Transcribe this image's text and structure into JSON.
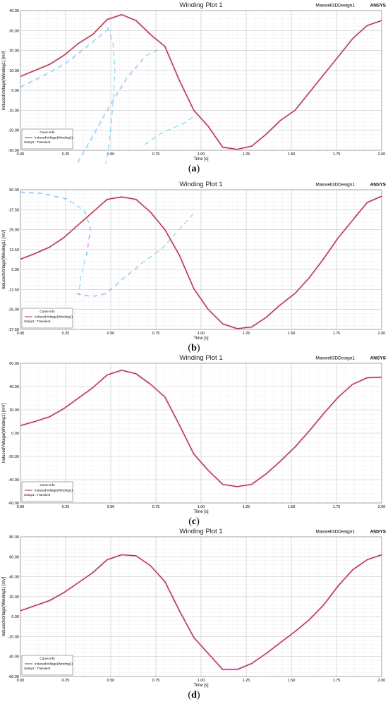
{
  "colors": {
    "curve": "#a52a2a",
    "grid_major": "#c8c8c8",
    "grid_minor": "#ececec",
    "artifact_blue": "#55c8ee",
    "artifact_magenta": "#f080f0"
  },
  "chart_data": [
    {
      "type": "line",
      "panel_label": "a",
      "title": "Winding Plot 1",
      "design_name": "Maxwell3DDesign1",
      "brand": "ANSYS",
      "xlabel": "Time [s]",
      "ylabel": "InducedVoltage(Winding1) [mV]",
      "xlim": [
        0,
        2
      ],
      "ylim": [
        -30,
        40
      ],
      "x_ticks": [
        0,
        0.25,
        0.5,
        0.75,
        1,
        1.25,
        1.5,
        1.75,
        2
      ],
      "x_tick_labels": [
        "0.00",
        "0.25",
        "0.50",
        "0.75",
        "1.00",
        "1.25",
        "1.50",
        "1.75",
        "2.00"
      ],
      "y_ticks": [
        -30,
        -20,
        -10,
        0,
        10,
        20,
        30,
        40
      ],
      "y_tick_labels": [
        "-30.00",
        "-20.00",
        "-10.00",
        "0.00",
        "10.00",
        "20.00",
        "30.00",
        "40.00"
      ],
      "legend": {
        "title": "Curve Info",
        "entry": "InducedVoltage(Winding1)",
        "setup": "Setup1 : Transient",
        "placement": "bottom-left"
      },
      "grid": true,
      "series": [
        {
          "name": "InducedVoltage(Winding1)",
          "x": [
            0,
            0.08,
            0.16,
            0.24,
            0.32,
            0.4,
            0.48,
            0.56,
            0.64,
            0.72,
            0.8,
            0.88,
            0.96,
            1.04,
            1.12,
            1.2,
            1.28,
            1.36,
            1.44,
            1.52,
            1.6,
            1.68,
            1.76,
            1.84,
            1.92,
            2.0
          ],
          "y": [
            7,
            10,
            13,
            17.5,
            23.5,
            28,
            35.5,
            38,
            35,
            28,
            22,
            5,
            -10,
            -18,
            -28.5,
            -29.5,
            -28,
            -22,
            -15,
            -10,
            -1,
            8,
            17,
            26,
            32.5,
            35
          ]
        }
      ]
    },
    {
      "type": "line",
      "panel_label": "b",
      "title": "Winding Plot 1",
      "design_name": "Maxwell3DDesign1",
      "brand": "ANSYS",
      "xlabel": "Time [s]",
      "ylabel": "InducedVoltage(Winding1) [mV]",
      "xlim": [
        0,
        2
      ],
      "ylim": [
        -37.5,
        50
      ],
      "x_ticks": [
        0,
        0.25,
        0.5,
        0.75,
        1,
        1.25,
        1.5,
        1.75,
        2
      ],
      "x_tick_labels": [
        "0.00",
        "0.25",
        "0.50",
        "0.75",
        "1.00",
        "1.25",
        "1.50",
        "1.75",
        "2.00"
      ],
      "y_ticks": [
        -37.5,
        -25,
        -12.5,
        0,
        12.5,
        25,
        37.5,
        50
      ],
      "y_tick_labels": [
        "-37.50",
        "-25.00",
        "-12.50",
        "0.00",
        "12.50",
        "25.00",
        "37.50",
        "50.00"
      ],
      "legend": {
        "title": "Curve Info",
        "entry": "InducedVoltage(Winding1)",
        "setup": "Setup1 : Transient",
        "placement": "bottom-left"
      },
      "grid": true,
      "series": [
        {
          "name": "InducedVoltage(Winding1)",
          "x": [
            0,
            0.08,
            0.16,
            0.24,
            0.32,
            0.4,
            0.48,
            0.56,
            0.64,
            0.72,
            0.8,
            0.88,
            0.96,
            1.04,
            1.12,
            1.2,
            1.28,
            1.36,
            1.44,
            1.52,
            1.6,
            1.68,
            1.76,
            1.84,
            1.92,
            2.0
          ],
          "y": [
            6.5,
            10,
            14,
            20,
            28,
            36,
            44,
            45.5,
            44,
            36,
            25,
            9,
            -12,
            -25,
            -34,
            -37,
            -36,
            -30,
            -22,
            -15,
            -5,
            7,
            20,
            31,
            42,
            46
          ]
        }
      ]
    },
    {
      "type": "line",
      "panel_label": "c",
      "title": "Winding Plot 1",
      "design_name": "Maxwell3DDesign1",
      "brand": "ANSYS",
      "xlabel": "Time [s]",
      "ylabel": "InducedVoltage(Winding1) [mV]",
      "xlim": [
        0,
        2
      ],
      "ylim": [
        -60,
        60
      ],
      "x_ticks": [
        0,
        0.25,
        0.5,
        0.75,
        1,
        1.25,
        1.5,
        1.75,
        2
      ],
      "x_tick_labels": [
        "0.00",
        "0.25",
        "0.50",
        "0.75",
        "1.00",
        "1.25",
        "1.50",
        "1.75",
        "2.00"
      ],
      "y_ticks": [
        -60,
        -40,
        -20,
        0,
        20,
        40,
        60
      ],
      "y_tick_labels": [
        "-60.00",
        "-40.00",
        "-20.00",
        "0.00",
        "20.00",
        "40.00",
        "60.00"
      ],
      "legend": {
        "title": "Curve Info",
        "entry": "InducedVoltage(Winding1)",
        "setup": "Setup1 : Transient",
        "placement": "bottom-left"
      },
      "grid": true,
      "series": [
        {
          "name": "InducedVoltage(Winding1)",
          "x": [
            0,
            0.08,
            0.16,
            0.24,
            0.32,
            0.4,
            0.48,
            0.56,
            0.64,
            0.72,
            0.8,
            0.88,
            0.96,
            1.04,
            1.12,
            1.2,
            1.28,
            1.36,
            1.44,
            1.52,
            1.6,
            1.68,
            1.76,
            1.84,
            1.92,
            2.0
          ],
          "y": [
            6.5,
            10,
            14,
            21,
            30,
            39,
            50,
            54,
            51,
            42,
            31,
            7,
            -18,
            -32,
            -44,
            -46,
            -44,
            -35,
            -24,
            -12,
            2,
            17,
            31,
            42,
            47.5,
            48
          ]
        }
      ]
    },
    {
      "type": "line",
      "panel_label": "d",
      "title": "Winding Plot 1",
      "design_name": "Maxwell3DDesign1",
      "brand": "ANSYS",
      "xlabel": "Time [s]",
      "ylabel": "InducedVoltage(Winding1) [mV]",
      "xlim": [
        0,
        2
      ],
      "ylim": [
        -60,
        80
      ],
      "x_ticks": [
        0,
        0.25,
        0.5,
        0.75,
        1,
        1.25,
        1.5,
        1.75,
        2
      ],
      "x_tick_labels": [
        "0.00",
        "0.25",
        "0.50",
        "0.75",
        "1.00",
        "1.25",
        "1.50",
        "1.75",
        "2.00"
      ],
      "y_ticks": [
        -60,
        -40,
        -20,
        0,
        20,
        40,
        60,
        80
      ],
      "y_tick_labels": [
        "-60.00",
        "-40.00",
        "-20.00",
        "0.00",
        "20.00",
        "40.00",
        "60.00",
        "80.00"
      ],
      "legend": {
        "title": "Curve Info",
        "entry": "InducedVoltage(Winding1)",
        "setup": "Setup1 : Transient",
        "placement": "bottom-left"
      },
      "grid": true,
      "series": [
        {
          "name": "InducedVoltage(Winding1)",
          "x": [
            0,
            0.08,
            0.16,
            0.24,
            0.32,
            0.4,
            0.48,
            0.56,
            0.64,
            0.72,
            0.8,
            0.88,
            0.96,
            1.04,
            1.12,
            1.2,
            1.28,
            1.36,
            1.44,
            1.52,
            1.6,
            1.68,
            1.76,
            1.84,
            1.92,
            2.0
          ],
          "y": [
            6,
            11,
            16,
            24,
            34,
            44,
            57,
            62,
            61,
            51,
            35,
            6,
            -21,
            -37,
            -53,
            -53,
            -47,
            -37,
            -26,
            -15,
            -3,
            12,
            31,
            47,
            57,
            62
          ]
        }
      ]
    }
  ]
}
